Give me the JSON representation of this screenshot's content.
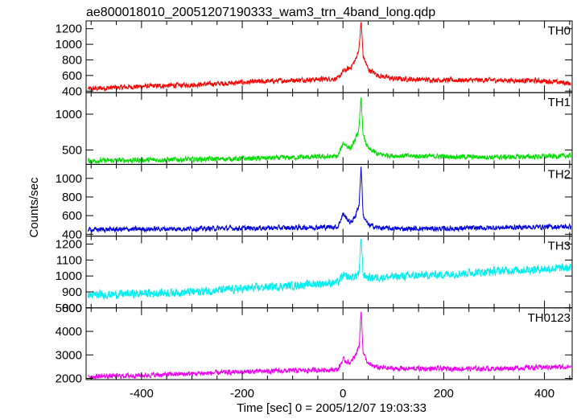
{
  "chart_data": {
    "type": "line",
    "title": "ae800018010_20051207190333_wam3_trn_4band_long.qdp",
    "xlabel": "Time [sec] 0 = 2005/12/07 19:03:33",
    "ylabel": "Counts/sec",
    "xlim": [
      -510,
      455
    ],
    "xticks": [
      "-400",
      "-200",
      "0",
      "200",
      "400"
    ],
    "xtick_values": [
      -400,
      -200,
      0,
      200,
      400
    ],
    "grid": false,
    "panels": [
      {
        "name": "TH0",
        "color": "#ff0000",
        "ylim": [
          380,
          1300
        ],
        "yticks": [
          "400",
          "600",
          "800",
          "1000",
          "1200"
        ],
        "ytick_values": [
          400,
          600,
          800,
          1000,
          1200
        ],
        "x": [
          -500,
          -400,
          -300,
          -200,
          -100,
          -10,
          0,
          15,
          25,
          32,
          36,
          40,
          50,
          70,
          100,
          200,
          300,
          400,
          450
        ],
        "values": [
          430,
          460,
          480,
          510,
          540,
          560,
          650,
          700,
          800,
          950,
          1300,
          850,
          680,
          600,
          560,
          540,
          540,
          530,
          500
        ]
      },
      {
        "name": "TH1",
        "color": "#00dd00",
        "ylim": [
          300,
          1300
        ],
        "yticks": [
          "500",
          "1000"
        ],
        "ytick_values": [
          500,
          1000
        ],
        "x": [
          -500,
          -400,
          -300,
          -200,
          -100,
          -10,
          0,
          15,
          25,
          32,
          36,
          40,
          50,
          70,
          100,
          200,
          300,
          400,
          450
        ],
        "values": [
          350,
          360,
          370,
          380,
          395,
          410,
          600,
          520,
          650,
          800,
          1250,
          700,
          520,
          440,
          420,
          410,
          400,
          410,
          420
        ]
      },
      {
        "name": "TH2",
        "color": "#0000dd",
        "ylim": [
          380,
          1150
        ],
        "yticks": [
          "400",
          "600",
          "800",
          "1000"
        ],
        "ytick_values": [
          400,
          600,
          800,
          1000
        ],
        "x": [
          -500,
          -400,
          -300,
          -200,
          -100,
          -10,
          0,
          15,
          25,
          32,
          36,
          40,
          50,
          70,
          100,
          200,
          300,
          400,
          450
        ],
        "values": [
          450,
          455,
          460,
          465,
          470,
          480,
          620,
          520,
          600,
          720,
          1140,
          600,
          500,
          470,
          460,
          460,
          470,
          480,
          480
        ]
      },
      {
        "name": "TH3",
        "color": "#00eeee",
        "ylim": [
          800,
          1250
        ],
        "yticks": [
          "800",
          "900",
          "1000",
          "1100",
          "1200"
        ],
        "ytick_values": [
          800,
          900,
          1000,
          1100,
          1200
        ],
        "x": [
          -500,
          -400,
          -300,
          -200,
          -100,
          -10,
          0,
          15,
          25,
          32,
          36,
          40,
          50,
          70,
          100,
          200,
          300,
          400,
          450
        ],
        "values": [
          880,
          890,
          900,
          920,
          940,
          960,
          1000,
          990,
          1000,
          1020,
          1240,
          1010,
          990,
          990,
          995,
          1010,
          1030,
          1045,
          1050
        ]
      },
      {
        "name": "TH0123",
        "color": "#ee00ee",
        "ylim": [
          1950,
          5000
        ],
        "yticks": [
          "2000",
          "3000",
          "4000",
          "5000"
        ],
        "ytick_values": [
          2000,
          3000,
          4000,
          5000
        ],
        "x": [
          -500,
          -400,
          -300,
          -200,
          -100,
          -10,
          0,
          15,
          25,
          32,
          36,
          40,
          50,
          70,
          100,
          200,
          300,
          400,
          450
        ],
        "values": [
          2080,
          2130,
          2200,
          2280,
          2330,
          2380,
          2800,
          2650,
          3000,
          3400,
          4900,
          3100,
          2600,
          2460,
          2420,
          2410,
          2420,
          2470,
          2500
        ]
      }
    ]
  }
}
